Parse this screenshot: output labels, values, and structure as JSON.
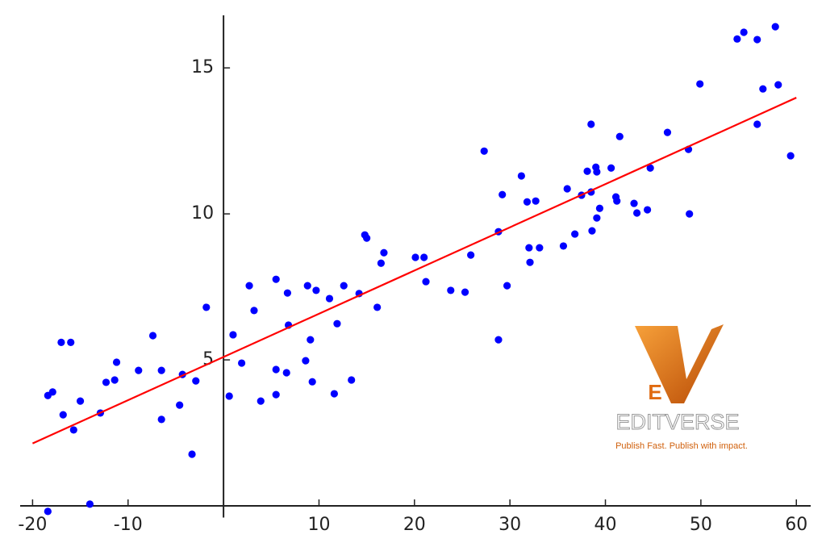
{
  "chart_data": {
    "type": "scatter",
    "series": [
      {
        "color": "#0000ff",
        "x": [
          -18.4,
          -18.4,
          -17.9,
          -17.0,
          -16.8,
          -16.0,
          -15.7,
          -15.0,
          -14.0,
          -12.9,
          -12.3,
          -11.4,
          -11.2,
          -8.9,
          -7.4,
          -6.5,
          -6.5,
          -4.6,
          -4.3,
          -3.3,
          -2.9,
          -1.8,
          0.6,
          1.0,
          1.9,
          2.7,
          3.2,
          3.9,
          5.5,
          5.5,
          5.5,
          6.6,
          6.7,
          6.8,
          8.8,
          8.6,
          9.1,
          9.3,
          9.7,
          11.1,
          11.6,
          11.9,
          12.6,
          13.4,
          14.2,
          14.8,
          15.0,
          16.1,
          16.5,
          16.8,
          20.1,
          21.0,
          21.2,
          23.8,
          25.3,
          25.9,
          27.3,
          28.8,
          28.8,
          29.2,
          29.7,
          31.2,
          31.8,
          32.0,
          32.1,
          32.7,
          33.1,
          35.6,
          36.0,
          36.8,
          37.5,
          38.1,
          38.5,
          38.5,
          38.6,
          39.0,
          39.1,
          39.1,
          39.4,
          40.6,
          41.1,
          41.2,
          41.5,
          43.0,
          43.3,
          44.4,
          44.7,
          46.5,
          48.7,
          48.8,
          49.9,
          53.8,
          54.5,
          55.9,
          55.9,
          56.5,
          57.8,
          58.1,
          59.4
        ],
        "values": [
          -0.19,
          3.78,
          3.9,
          5.6,
          3.12,
          5.6,
          2.6,
          3.59,
          0.06,
          3.18,
          4.23,
          4.31,
          4.92,
          4.64,
          5.83,
          4.64,
          2.96,
          3.45,
          4.5,
          1.77,
          4.28,
          6.8,
          3.76,
          5.86,
          4.89,
          7.54,
          6.69,
          3.59,
          7.76,
          4.67,
          3.81,
          4.56,
          7.29,
          6.19,
          7.54,
          4.97,
          5.69,
          4.25,
          7.38,
          7.1,
          3.84,
          6.24,
          7.54,
          4.31,
          7.27,
          9.28,
          9.17,
          6.8,
          8.31,
          8.67,
          8.51,
          8.51,
          7.68,
          7.38,
          7.32,
          8.59,
          12.15,
          9.39,
          5.69,
          10.66,
          7.54,
          11.3,
          10.41,
          8.84,
          8.34,
          10.44,
          8.84,
          8.9,
          10.86,
          9.31,
          10.64,
          11.46,
          13.07,
          10.75,
          9.42,
          11.6,
          11.44,
          9.86,
          10.19,
          11.57,
          10.58,
          10.44,
          12.65,
          10.36,
          10.03,
          10.14,
          11.57,
          12.79,
          12.21,
          10.0,
          14.45,
          15.99,
          16.22,
          15.97,
          13.07,
          14.28,
          16.41,
          14.42,
          11.99
        ]
      },
      {
        "type": "line",
        "color": "#ff0000",
        "x": [
          -20,
          60
        ],
        "values": [
          2.14,
          13.98
        ]
      }
    ],
    "xlim": [
      -21.3,
      61.5
    ],
    "ylim": [
      -0.4,
      16.8
    ],
    "xticks": [
      -20,
      -10,
      10,
      20,
      30,
      40,
      50,
      60
    ],
    "yticks": [
      5,
      10,
      15
    ],
    "grid": false,
    "watermark": {
      "letter": "E",
      "brand": "EDITVERSE",
      "tagline": "Publish Fast. Publish with impact."
    }
  }
}
